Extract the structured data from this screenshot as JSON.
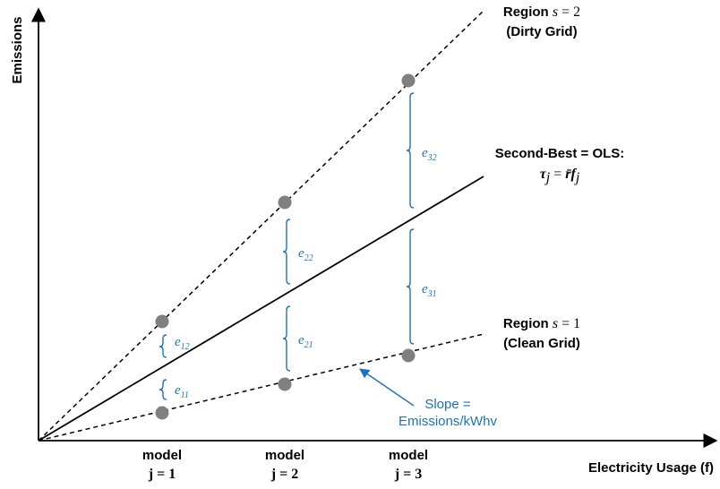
{
  "axes": {
    "y_label": "Emissions",
    "x_label": "Electricity Usage (f)"
  },
  "models": [
    {
      "word": "model",
      "index": "j = 1"
    },
    {
      "word": "model",
      "index": "j = 2"
    },
    {
      "word": "model",
      "index": "j = 3"
    }
  ],
  "labels": {
    "dirty_line1_prefix": "Region ",
    "dirty_line1_var": "s",
    "dirty_line1_eq": " = 2",
    "dirty_line2": "(Dirty Grid)",
    "clean_line1_prefix": "Region ",
    "clean_line1_var": "s",
    "clean_line1_eq": " = 1",
    "clean_line2": "(Clean Grid)",
    "ols_line1": "Second-Best = OLS:",
    "ols_tau": "τ",
    "ols_tau_sub": "j",
    "ols_eq": " = ",
    "ols_rbar": "r̄",
    "ols_f": "f",
    "ols_f_sub": "j"
  },
  "slope_note": {
    "line1": "Slope =",
    "line2": "Emissions/kWhv"
  },
  "errors": [
    {
      "letter": "e",
      "sub": "11"
    },
    {
      "letter": "e",
      "sub": "12"
    },
    {
      "letter": "e",
      "sub": "21"
    },
    {
      "letter": "e",
      "sub": "22"
    },
    {
      "letter": "e",
      "sub": "31"
    },
    {
      "letter": "e",
      "sub": "32"
    }
  ],
  "colors": {
    "accent": "#1f73b7",
    "point": "#808080",
    "line": "#000000"
  }
}
